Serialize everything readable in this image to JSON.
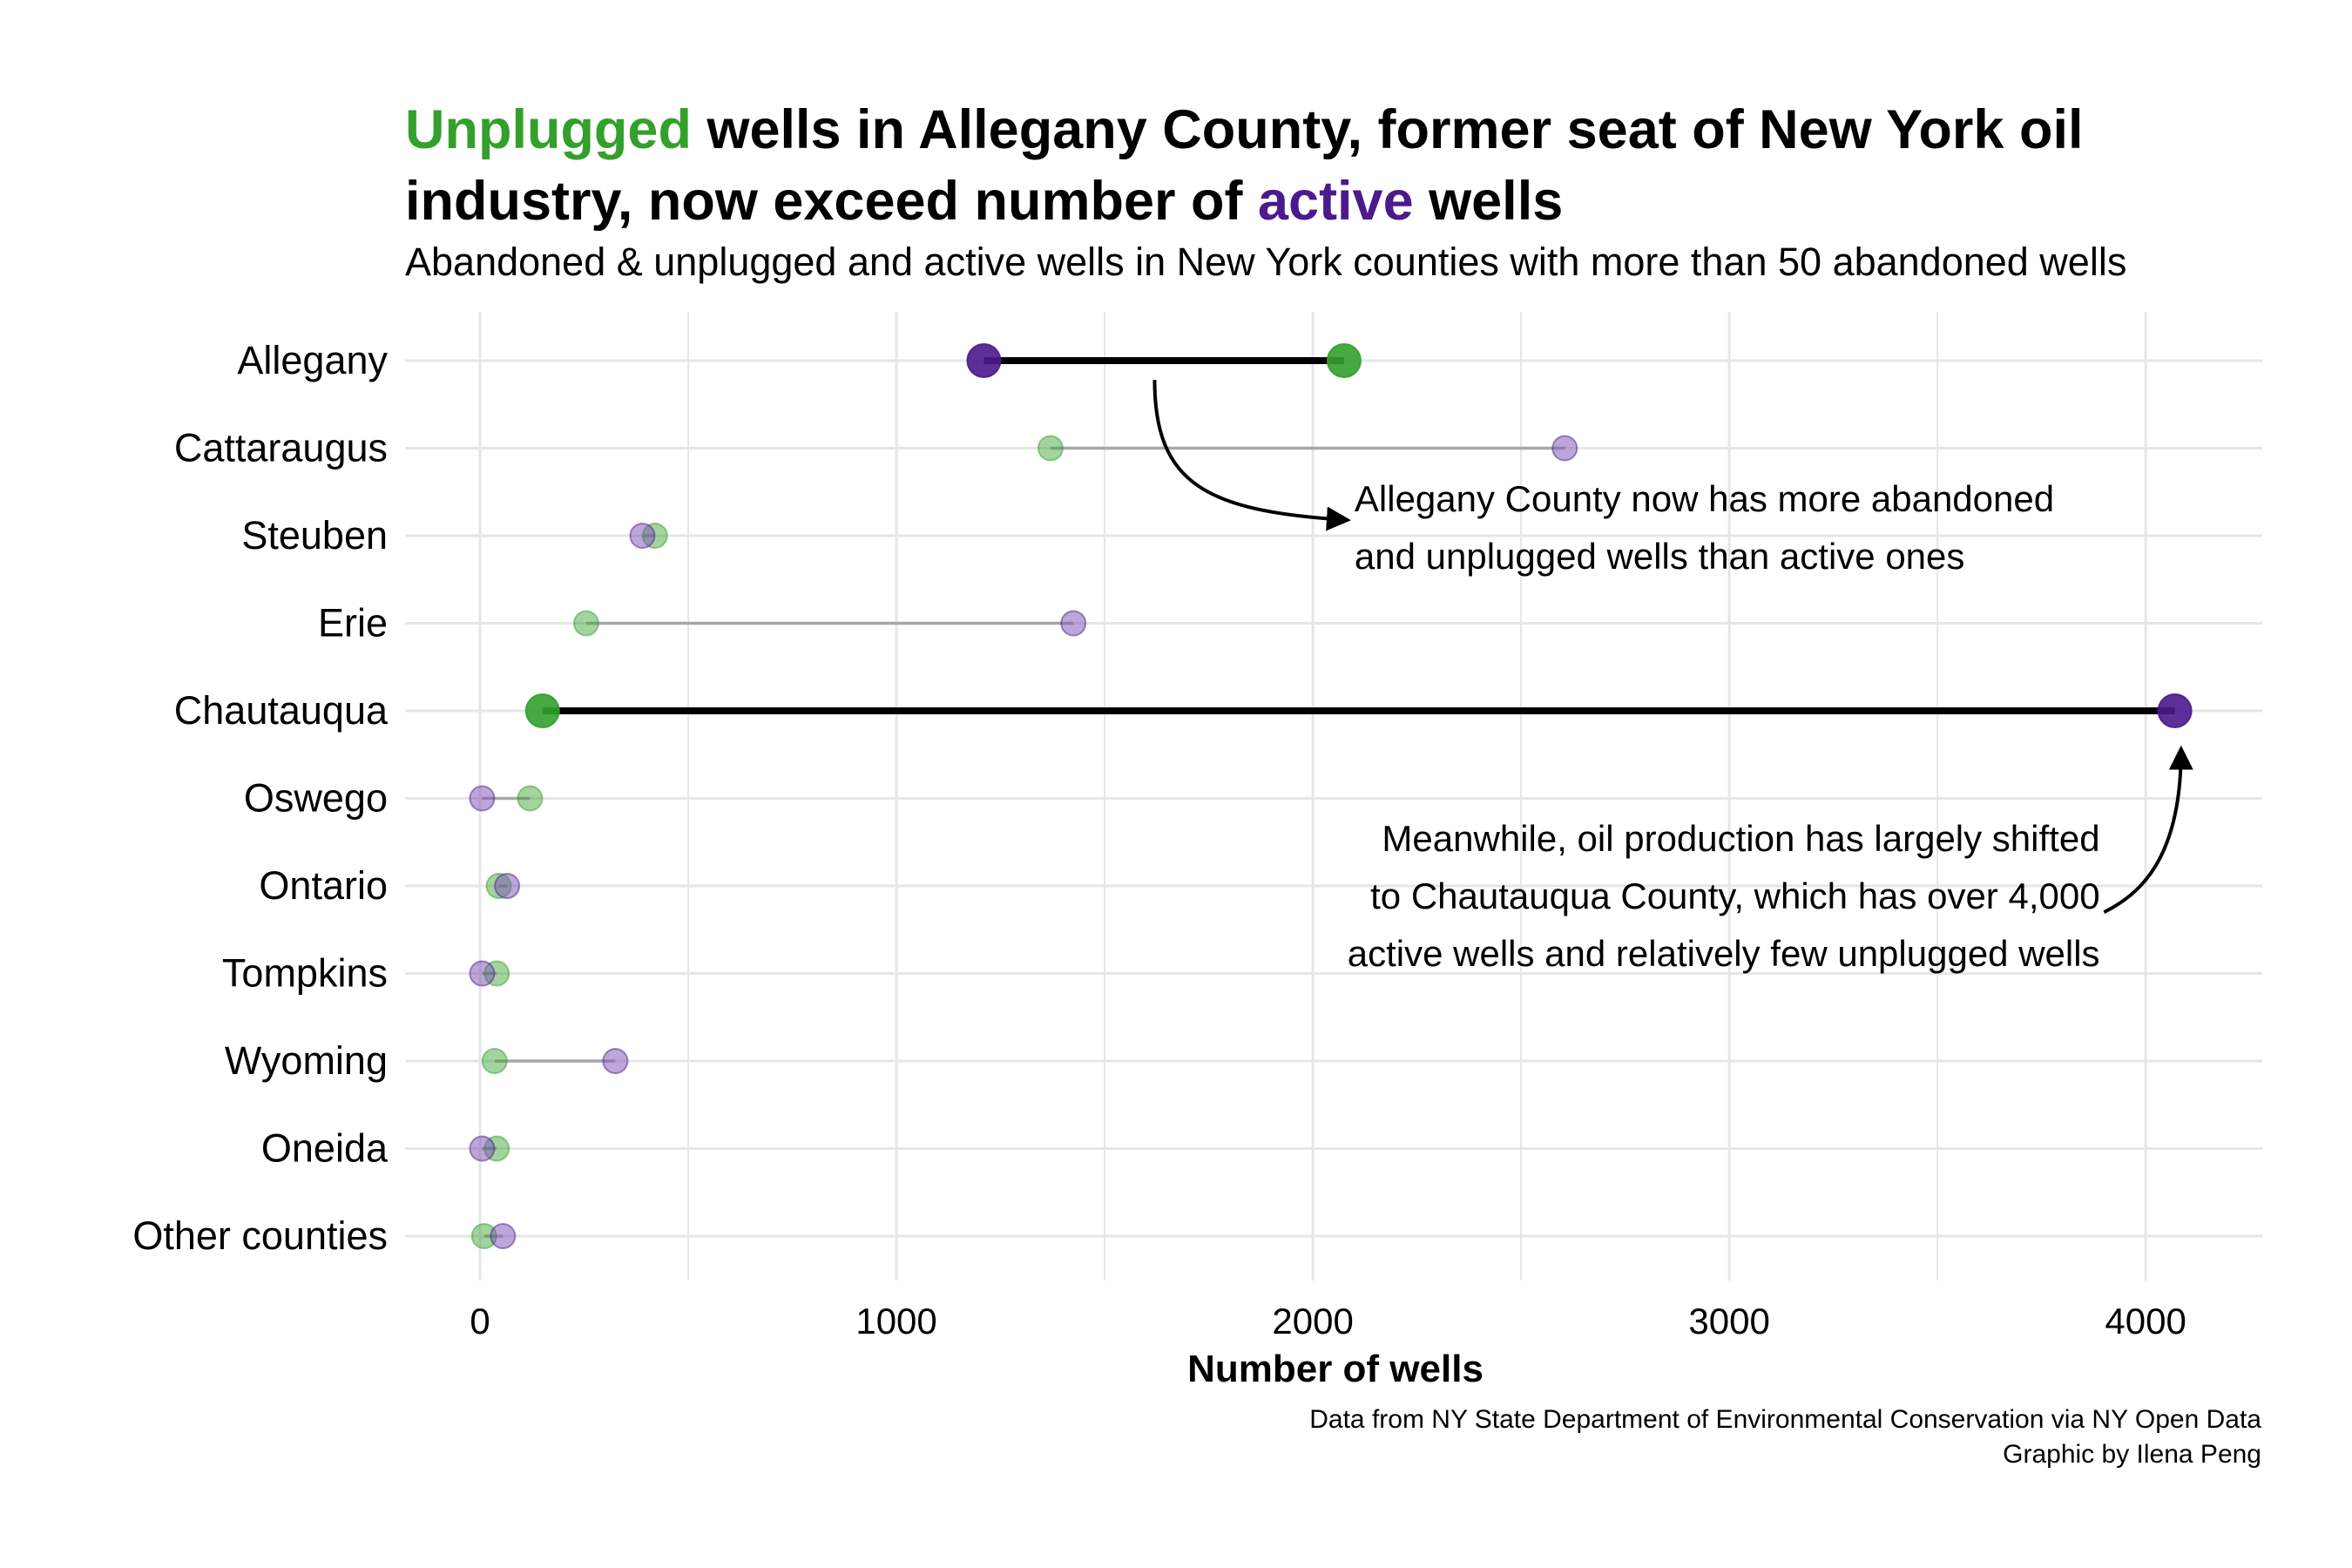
{
  "title": {
    "highlight_unplugged": "Unplugged",
    "part2": " wells in Allegany County, former seat of New York oil industry, now exceed number of ",
    "highlight_active": "active",
    "part4": " wells"
  },
  "subtitle": "Abandoned & unplugged and active wells in New York counties with more than 50 abandoned wells",
  "caption": {
    "line1": "Data from NY State Department of Environmental Conservation via NY Open Data",
    "line2": "Graphic by Ilena Peng"
  },
  "colors": {
    "unplugged": "#33a02c",
    "active": "#4b1a8c",
    "active_point": "#7b4fb5",
    "grid": "#e6e6e6",
    "connector_highlight": "#000000",
    "connector_other": "#a0a0a0"
  },
  "chart_data": {
    "type": "dumbbell",
    "xlabel": "Number of wells",
    "xlim": [
      -180,
      4280
    ],
    "xticks": [
      0,
      1000,
      2000,
      3000,
      4000
    ],
    "tick_labels": [
      "0",
      "1000",
      "2000",
      "3000",
      "4000"
    ],
    "grid": true,
    "categories": [
      "Allegany",
      "Cattaraugus",
      "Steuben",
      "Erie",
      "Chautauqua",
      "Oswego",
      "Ontario",
      "Tompkins",
      "Wyoming",
      "Oneida",
      "Other counties"
    ],
    "highlighted": [
      "Allegany",
      "Chautauqua"
    ],
    "series": [
      {
        "name": "Unplugged",
        "color": "#33a02c",
        "values": [
          2075,
          1370,
          420,
          255,
          150,
          120,
          45,
          40,
          35,
          40,
          10
        ]
      },
      {
        "name": "active",
        "color": "#4b1a8c",
        "values": [
          1210,
          2605,
          390,
          1425,
          4070,
          5,
          65,
          5,
          325,
          5,
          55
        ]
      }
    ],
    "annotations": [
      {
        "lines": [
          "Allegany County now has more abandoned",
          "and unplugged wells than active ones"
        ],
        "align": "left",
        "anchor_x": 2100,
        "anchor_row": 1.72,
        "arrow_from": [
          1620,
          0.22
        ],
        "arrow_to": [
          2080,
          1.82
        ]
      },
      {
        "lines": [
          "Meanwhile, oil production has largely shifted",
          "to Chautauqua County, which has over 4,000",
          "active wells and relatively few unplugged wells"
        ],
        "align": "right",
        "anchor_x": 3890,
        "anchor_row": 5.6,
        "arrow_from": [
          3900,
          6.3
        ],
        "arrow_to": [
          4085,
          4.45
        ]
      }
    ]
  }
}
